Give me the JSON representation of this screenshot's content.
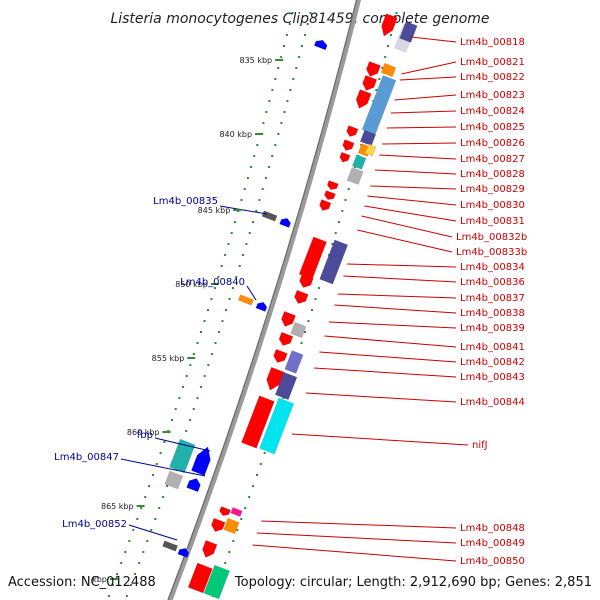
{
  "title": "Listeria monocytogenes Clip81459, complete genome",
  "footer": {
    "accession": "Accession: NC_012488",
    "topology": "Topology: circular; Length: 2,912,690 bp; Genes: 2,851"
  },
  "colors": {
    "backbone": "#8a8a8a",
    "tick": "#2e8b2e",
    "right_label": "#cc0000",
    "left_label": "#00008b",
    "gene_red": "#ff0000",
    "gene_blue": "#0000ff",
    "gene_navy": "#4b4b9a",
    "gene_steel": "#5b9bd5",
    "gene_orange": "#ff8c00",
    "gene_cyan": "#00e5ee",
    "gene_teal": "#20b2aa",
    "gene_grey": "#b0b0b0",
    "gene_dark": "#555555",
    "gene_green": "#00c87a",
    "gene_magenta": "#ff1493"
  },
  "scale_labels": [
    "835 kbp",
    "840 kbp",
    "845 kbp",
    "850 kbp",
    "855 kbp",
    "860 kbp",
    "865 kbp",
    "kbp"
  ],
  "right_labels": [
    "Lm4b_00818",
    "Lm4b_00821",
    "Lm4b_00822",
    "Lm4b_00823",
    "Lm4b_00824",
    "Lm4b_00825",
    "Lm4b_00826",
    "Lm4b_00827",
    "Lm4b_00828",
    "Lm4b_00829",
    "Lm4b_00830",
    "Lm4b_00831",
    "Lm4b_00832b",
    "Lm4b_00833b",
    "Lm4b_00834",
    "Lm4b_00836",
    "Lm4b_00837",
    "Lm4b_00838",
    "Lm4b_00839",
    "Lm4b_00841",
    "Lm4b_00842",
    "Lm4b_00843",
    "Lm4b_00844",
    "nifJ",
    "Lm4b_00848",
    "Lm4b_00849",
    "Lm4b_00850"
  ],
  "left_labels": [
    "Lm4b_00835",
    "Lm4b_00840",
    "fbp",
    "Lm4b_00847",
    "Lm4b_00852"
  ]
}
